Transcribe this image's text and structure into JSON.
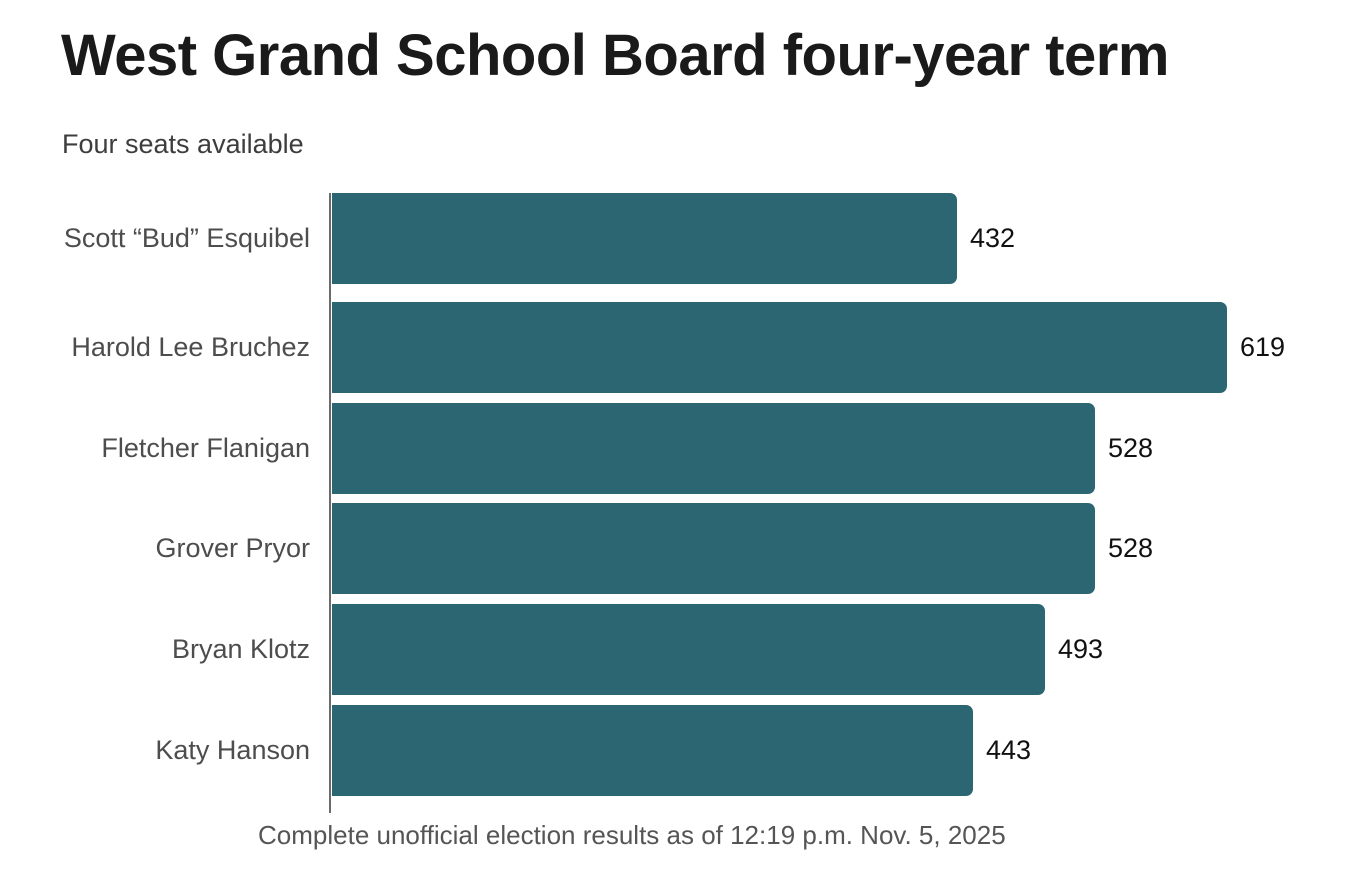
{
  "header": {
    "title": "West Grand School Board four-year term",
    "subtitle": "Four seats available"
  },
  "footer": {
    "note": "Complete unofficial election results as of 12:19 p.m. Nov. 5, 2025"
  },
  "colors": {
    "bar": "#2d6673",
    "axis": "#6b6b6b",
    "title": "#1a1a1a",
    "category_label": "#4d4d4d",
    "value_label": "#111111",
    "subtitle": "#3d3d3d",
    "footer": "#555555",
    "background": "#ffffff"
  },
  "chart_data": {
    "type": "bar",
    "orientation": "horizontal",
    "title": "West Grand School Board four-year term",
    "subtitle": "Four seats available",
    "categories": [
      "Harold Lee Bruchez",
      "Fletcher Flanigan",
      "Grover Pryor",
      "Bryan Klotz",
      "Katy Hanson",
      "Scott “Bud” Esquibel"
    ],
    "values": [
      619,
      528,
      528,
      493,
      443,
      432
    ],
    "xlabel": "",
    "ylabel": "",
    "xlim": [
      0,
      619
    ],
    "grid": false,
    "legend": false,
    "value_labels": "outside-end",
    "note": "Complete unofficial election results as of 12:19 p.m. Nov. 5, 2025"
  }
}
